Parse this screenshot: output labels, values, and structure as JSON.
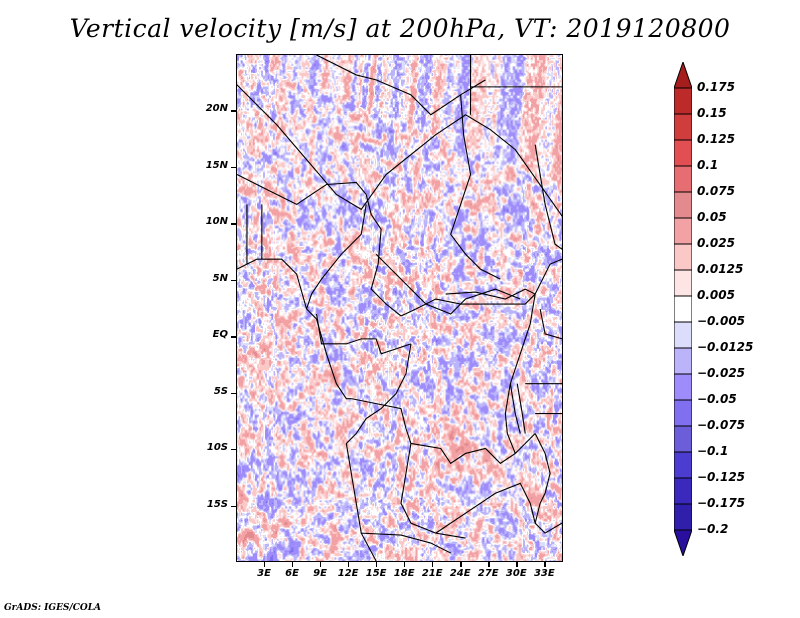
{
  "chart_data": {
    "type": "heatmap",
    "title": "Vertical velocity [m/s] at 200hPa, VT: 2019120800",
    "variable": "Vertical velocity",
    "units": "m/s",
    "level": "200hPa",
    "valid_time": "2019120800",
    "xlabel": "",
    "ylabel": "",
    "x_ticks": [
      "3E",
      "6E",
      "9E",
      "12E",
      "15E",
      "18E",
      "21E",
      "24E",
      "27E",
      "30E",
      "33E"
    ],
    "x_tick_values": [
      3,
      6,
      9,
      12,
      15,
      18,
      21,
      24,
      27,
      30,
      33
    ],
    "y_ticks": [
      "20N",
      "15N",
      "10N",
      "5N",
      "EQ",
      "5S",
      "10S",
      "15S"
    ],
    "y_tick_values": [
      20,
      15,
      10,
      5,
      0,
      -5,
      -10,
      -15
    ],
    "xlim": [
      0,
      35
    ],
    "ylim": [
      -20,
      25
    ],
    "colorbar": {
      "orientation": "vertical",
      "position": "right",
      "extend": "both",
      "levels": [
        0.175,
        0.15,
        0.125,
        0.1,
        0.075,
        0.05,
        0.025,
        0.0125,
        0.005,
        -0.005,
        -0.0125,
        -0.025,
        -0.05,
        -0.075,
        -0.1,
        -0.125,
        -0.175,
        -0.2
      ],
      "labels": [
        "0.175",
        "0.15",
        "0.125",
        "0.1",
        "0.075",
        "0.05",
        "0.025",
        "0.0125",
        "0.005",
        "−0.005",
        "−0.0125",
        "−0.025",
        "−0.05",
        "−0.075",
        "−0.1",
        "−0.125",
        "−0.175",
        "−0.2"
      ],
      "colors": [
        "#a51d1d",
        "#bd2a2a",
        "#cf3d3d",
        "#e24f53",
        "#e66e72",
        "#e38a8e",
        "#f2a2a4",
        "#fbc8c8",
        "#fde5e5",
        "#ffffff",
        "#dcdcfb",
        "#bcb4fb",
        "#9e8cfb",
        "#8070f0",
        "#6c5ed8",
        "#4c3ccf",
        "#3a29bc",
        "#2f1fab",
        "#2a0f9e"
      ]
    },
    "description": "Gridded field over central Africa (approx. 0E-35E, 20S-25N) with overlaid country boundaries; small-scale alternating positive/negative values, strongest positive patches near 10S 21E-24E."
  },
  "footer": "GrADS: IGES/COLA"
}
